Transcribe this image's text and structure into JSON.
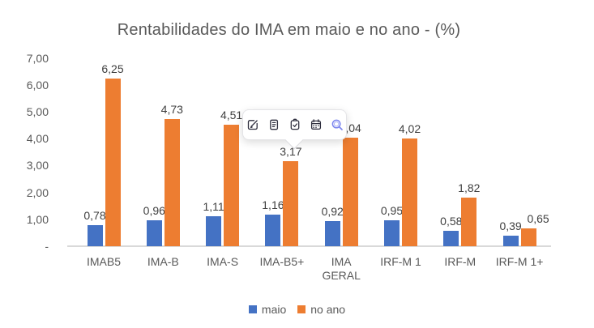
{
  "chart_data": {
    "type": "bar",
    "title": "Rentabilidades do IMA em maio e no ano - (%)",
    "categories": [
      "IMAB5",
      "IMA-B",
      "IMA-S",
      "IMA-B5+",
      "IMA GERAL",
      "IRF-M 1",
      "IRF-M",
      "IRF-M 1+"
    ],
    "series": [
      {
        "name": "maio",
        "color": "#4472C4",
        "values": [
          0.78,
          0.96,
          1.11,
          1.16,
          0.92,
          0.95,
          0.58,
          0.39
        ],
        "labels": [
          "0,78",
          "0,96",
          "1,11",
          "1,16",
          "0,92",
          "0,95",
          "0,58",
          "0,39"
        ]
      },
      {
        "name": "no ano",
        "color": "#ED7D31",
        "values": [
          6.25,
          4.73,
          4.51,
          3.17,
          4.04,
          4.02,
          1.82,
          0.65
        ],
        "labels": [
          "6,25",
          "4,73",
          "4,51",
          "3,17",
          "4,04",
          "4,02",
          "1,82",
          "0,65"
        ]
      }
    ],
    "y_axis": {
      "min": 0,
      "max": 7,
      "ticks": [
        {
          "value": 7,
          "label": "7,00"
        },
        {
          "value": 6,
          "label": "6,00"
        },
        {
          "value": 5,
          "label": "5,00"
        },
        {
          "value": 4,
          "label": "4,00"
        },
        {
          "value": 3,
          "label": "3,00"
        },
        {
          "value": 2,
          "label": "2,00"
        },
        {
          "value": 1,
          "label": "1,00"
        },
        {
          "value": 0,
          "label": "-"
        }
      ]
    },
    "legend": {
      "position": "bottom",
      "items": [
        {
          "label": "maio",
          "color": "#4472C4"
        },
        {
          "label": "no ano",
          "color": "#ED7D31"
        }
      ]
    },
    "grid": false,
    "axis_line_color": "#d9d9d9",
    "label_color": "#404040",
    "axis_text_color": "#595959"
  },
  "toolbar_overlay": {
    "icons": [
      {
        "name": "edit-icon"
      },
      {
        "name": "notes-icon"
      },
      {
        "name": "tasks-icon"
      },
      {
        "name": "calendar-icon"
      },
      {
        "name": "search-icon"
      }
    ]
  }
}
